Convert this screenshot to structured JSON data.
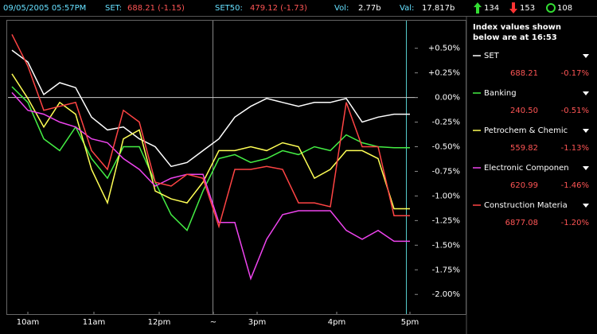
{
  "header": {
    "datetime": "09/05/2005 05:57PM",
    "set_label": "SET:",
    "set_value": "688.21 (-1.15)",
    "set50_label": "SET50:",
    "set50_value": "479.12 (-1.73)",
    "vol_label": "Vol:",
    "vol_value": "2.77b",
    "val_label": "Val:",
    "val_value": "17.817b",
    "advances": "134",
    "declines": "153",
    "unchanged": "108"
  },
  "sidebar": {
    "title_line1": "Index values shown",
    "title_line2": "below are at 16:53",
    "items": [
      {
        "value": "688.21",
        "change": "-0.17%"
      },
      {
        "value": "240.50",
        "change": "-0.51%"
      },
      {
        "value": "559.82",
        "change": "-1.13%"
      },
      {
        "value": "620.99",
        "change": "-1.46%"
      },
      {
        "value": "6877.08",
        "change": "-1.20%"
      }
    ]
  },
  "chart_data": {
    "type": "line",
    "x": [
      5,
      25,
      45,
      65,
      85,
      105,
      125,
      145,
      165,
      185,
      205,
      225,
      245,
      265,
      285,
      305,
      325,
      345,
      365,
      385,
      405,
      425,
      445,
      465,
      485,
      505
    ],
    "xlim": [
      0,
      515
    ],
    "xticks": [
      {
        "value": 25,
        "label": "10am"
      },
      {
        "value": 108,
        "label": "11am"
      },
      {
        "value": 190,
        "label": "12pm"
      },
      {
        "value": 258,
        "label": "~"
      },
      {
        "value": 313,
        "label": "3pm"
      },
      {
        "value": 413,
        "label": "4pm"
      },
      {
        "value": 505,
        "label": "5pm"
      }
    ],
    "ylim": [
      -2.2,
      0.78
    ],
    "yticks": [
      {
        "value": 0.5,
        "label": "+0.50%"
      },
      {
        "value": 0.25,
        "label": "+0.25%"
      },
      {
        "value": 0,
        "label": "0.00%"
      },
      {
        "value": -0.25,
        "label": "-0.25%"
      },
      {
        "value": -0.5,
        "label": "-0.50%"
      },
      {
        "value": -0.75,
        "label": "-0.75%"
      },
      {
        "value": -1,
        "label": "-1.00%"
      },
      {
        "value": -1.25,
        "label": "-1.25%"
      },
      {
        "value": -1.5,
        "label": "-1.50%"
      },
      {
        "value": -1.75,
        "label": "-1.75%"
      },
      {
        "value": -2,
        "label": "-2.00%"
      }
    ],
    "series": [
      {
        "name": "SET",
        "color": "#ffffff",
        "values": [
          0.48,
          0.36,
          0.03,
          0.15,
          0.1,
          -0.2,
          -0.33,
          -0.3,
          -0.42,
          -0.5,
          -0.7,
          -0.66,
          -0.54,
          -0.42,
          -0.2,
          -0.09,
          -0.01,
          -0.05,
          -0.09,
          -0.05,
          -0.05,
          -0.01,
          -0.25,
          -0.2,
          -0.17,
          -0.17
        ]
      },
      {
        "name": "Banking",
        "color": "#44ee44",
        "values": [
          0.11,
          -0.05,
          -0.42,
          -0.54,
          -0.3,
          -0.62,
          -0.82,
          -0.5,
          -0.5,
          -0.86,
          -1.19,
          -1.35,
          -0.95,
          -0.62,
          -0.58,
          -0.66,
          -0.62,
          -0.54,
          -0.58,
          -0.5,
          -0.54,
          -0.38,
          -0.46,
          -0.5,
          -0.51,
          -0.51
        ]
      },
      {
        "name": "Petrochem & Chemic",
        "color": "#ffff55",
        "values": [
          0.24,
          -0.01,
          -0.3,
          -0.05,
          -0.17,
          -0.73,
          -1.07,
          -0.42,
          -0.33,
          -0.95,
          -1.03,
          -1.07,
          -0.86,
          -0.54,
          -0.54,
          -0.5,
          -0.54,
          -0.46,
          -0.5,
          -0.82,
          -0.73,
          -0.54,
          -0.54,
          -0.62,
          -1.13,
          -1.13
        ]
      },
      {
        "name": "Electronic Componen",
        "color": "#ee44ee",
        "values": [
          0.05,
          -0.13,
          -0.17,
          -0.25,
          -0.3,
          -0.42,
          -0.46,
          -0.62,
          -0.73,
          -0.9,
          -0.82,
          -0.78,
          -0.78,
          -1.27,
          -1.27,
          -1.84,
          -1.44,
          -1.19,
          -1.15,
          -1.15,
          -1.15,
          -1.35,
          -1.44,
          -1.35,
          -1.46,
          -1.46
        ]
      },
      {
        "name": "Construction Materia",
        "color": "#ff4444",
        "values": [
          0.64,
          0.32,
          -0.13,
          -0.09,
          -0.05,
          -0.54,
          -0.73,
          -0.13,
          -0.25,
          -0.86,
          -0.9,
          -0.78,
          -0.82,
          -1.31,
          -0.73,
          -0.73,
          -0.7,
          -0.73,
          -1.07,
          -1.07,
          -1.11,
          -0.05,
          -0.5,
          -0.5,
          -1.2,
          -1.2
        ]
      }
    ]
  }
}
